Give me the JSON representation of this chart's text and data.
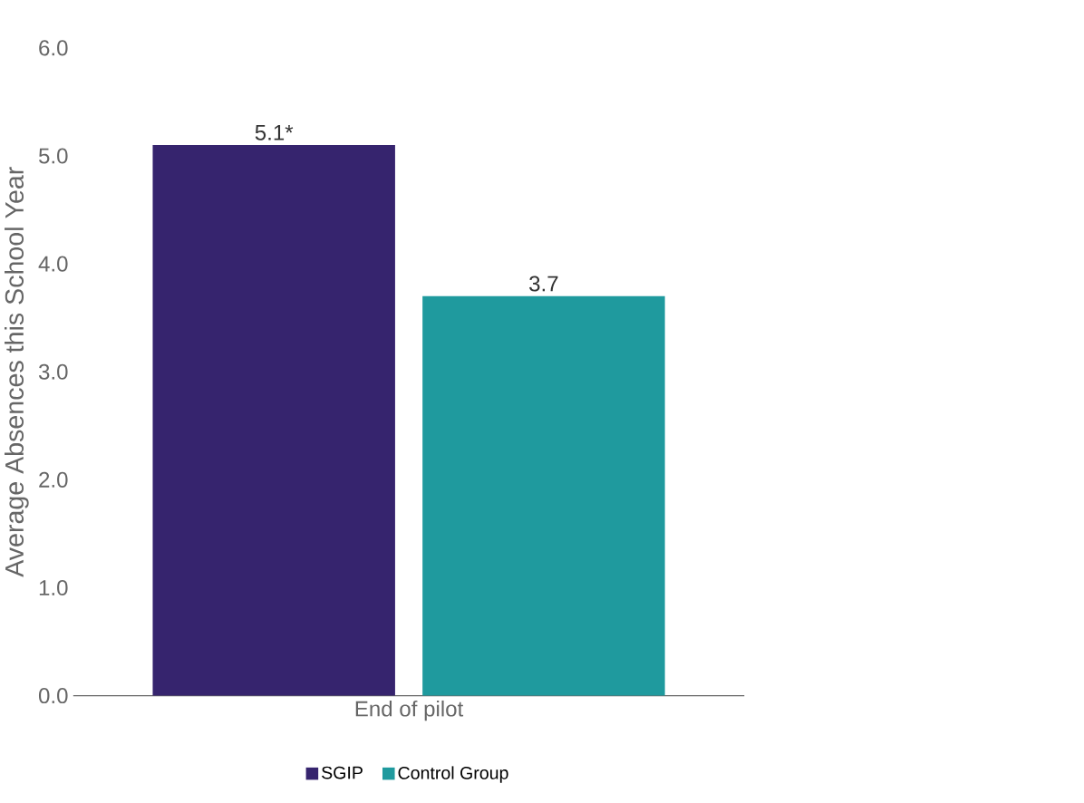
{
  "chart_data": {
    "type": "bar",
    "ylabel": "Average Absences this School Year",
    "categories": [
      "End of pilot"
    ],
    "series": [
      {
        "name": "SGIP",
        "color": "#36246e",
        "values": [
          5.1
        ],
        "value_labels": [
          "5.1*"
        ]
      },
      {
        "name": "Control Group",
        "color": "#1f9a9e",
        "values": [
          3.7
        ],
        "value_labels": [
          "3.7"
        ]
      }
    ],
    "ylim": [
      0,
      6
    ],
    "yticks": [
      {
        "value": 0,
        "label": "0.0"
      },
      {
        "value": 1,
        "label": "1.0"
      },
      {
        "value": 2,
        "label": "2.0"
      },
      {
        "value": 3,
        "label": "3.0"
      },
      {
        "value": 4,
        "label": "4.0"
      },
      {
        "value": 5,
        "label": "5.0"
      },
      {
        "value": 6,
        "label": "6.0"
      }
    ],
    "grid": false,
    "legend": "bottom"
  }
}
